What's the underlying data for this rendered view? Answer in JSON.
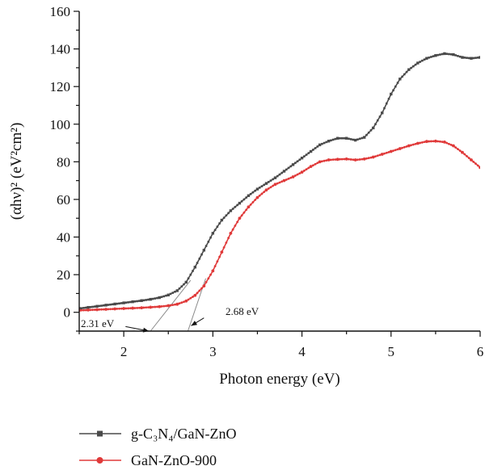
{
  "chart_data": {
    "type": "line",
    "title": "",
    "xlabel": "Photon energy (eV)",
    "ylabel": "(αhν)² (eV²cm²)",
    "xlim": [
      1.5,
      6
    ],
    "ylim": [
      -10,
      160
    ],
    "x_ticks": [
      2,
      3,
      4,
      5,
      6
    ],
    "y_ticks": [
      0,
      20,
      40,
      60,
      80,
      100,
      120,
      140,
      160
    ],
    "grid": false,
    "legend_position": "bottom",
    "series": [
      {
        "name": "g-C₃N₄/GaN-ZnO",
        "color": "#4a4a4a",
        "marker": "square",
        "points": [
          [
            1.5,
            2
          ],
          [
            1.6,
            2.6
          ],
          [
            1.7,
            3.2
          ],
          [
            1.8,
            3.8
          ],
          [
            1.9,
            4.4
          ],
          [
            2.0,
            5
          ],
          [
            2.1,
            5.6
          ],
          [
            2.2,
            6.2
          ],
          [
            2.3,
            6.9
          ],
          [
            2.4,
            7.8
          ],
          [
            2.5,
            9.2
          ],
          [
            2.6,
            11.5
          ],
          [
            2.7,
            16
          ],
          [
            2.8,
            24
          ],
          [
            2.9,
            33
          ],
          [
            3.0,
            42
          ],
          [
            3.1,
            49
          ],
          [
            3.2,
            54
          ],
          [
            3.3,
            58
          ],
          [
            3.4,
            62
          ],
          [
            3.5,
            65.5
          ],
          [
            3.6,
            68.5
          ],
          [
            3.7,
            71.5
          ],
          [
            3.8,
            75
          ],
          [
            3.9,
            78.5
          ],
          [
            4.0,
            82
          ],
          [
            4.1,
            85.5
          ],
          [
            4.2,
            89
          ],
          [
            4.3,
            91
          ],
          [
            4.4,
            92.5
          ],
          [
            4.5,
            92.5
          ],
          [
            4.6,
            91.5
          ],
          [
            4.7,
            93
          ],
          [
            4.8,
            98
          ],
          [
            4.9,
            106
          ],
          [
            5.0,
            116
          ],
          [
            5.1,
            124
          ],
          [
            5.2,
            129
          ],
          [
            5.3,
            132.5
          ],
          [
            5.4,
            135
          ],
          [
            5.5,
            136.5
          ],
          [
            5.6,
            137.5
          ],
          [
            5.7,
            137
          ],
          [
            5.8,
            135.5
          ],
          [
            5.9,
            135
          ],
          [
            6.0,
            135.5
          ]
        ]
      },
      {
        "name": "GaN-ZnO-900",
        "color": "#e03a3a",
        "marker": "circle",
        "points": [
          [
            1.5,
            1
          ],
          [
            1.6,
            1.2
          ],
          [
            1.7,
            1.4
          ],
          [
            1.8,
            1.6
          ],
          [
            1.9,
            1.8
          ],
          [
            2.0,
            2
          ],
          [
            2.1,
            2.2
          ],
          [
            2.2,
            2.4
          ],
          [
            2.3,
            2.7
          ],
          [
            2.4,
            3
          ],
          [
            2.5,
            3.5
          ],
          [
            2.6,
            4.3
          ],
          [
            2.7,
            6
          ],
          [
            2.8,
            9
          ],
          [
            2.9,
            14
          ],
          [
            3.0,
            22
          ],
          [
            3.1,
            32
          ],
          [
            3.2,
            42
          ],
          [
            3.3,
            50
          ],
          [
            3.4,
            56
          ],
          [
            3.5,
            61
          ],
          [
            3.6,
            65
          ],
          [
            3.7,
            68
          ],
          [
            3.8,
            70
          ],
          [
            3.9,
            72
          ],
          [
            4.0,
            74.5
          ],
          [
            4.1,
            77.5
          ],
          [
            4.2,
            80
          ],
          [
            4.3,
            81
          ],
          [
            4.4,
            81.3
          ],
          [
            4.5,
            81.5
          ],
          [
            4.6,
            81
          ],
          [
            4.7,
            81.5
          ],
          [
            4.8,
            82.5
          ],
          [
            4.9,
            84
          ],
          [
            5.0,
            85.5
          ],
          [
            5.1,
            87
          ],
          [
            5.2,
            88.5
          ],
          [
            5.3,
            89.8
          ],
          [
            5.4,
            90.8
          ],
          [
            5.5,
            91
          ],
          [
            5.6,
            90.5
          ],
          [
            5.7,
            88.5
          ],
          [
            5.8,
            85
          ],
          [
            5.9,
            81
          ],
          [
            6.0,
            77
          ]
        ]
      }
    ],
    "tangent_lines": [
      {
        "from": [
          2.3,
          -10
        ],
        "to": [
          2.75,
          17
        ]
      },
      {
        "from": [
          2.72,
          -10
        ],
        "to": [
          2.92,
          18
        ]
      }
    ],
    "annotations": [
      {
        "text": "2.31 eV",
        "at": [
          2.3,
          -10
        ],
        "arrow_from": [
          2.02,
          -7.6
        ]
      },
      {
        "text": "2.68 eV",
        "at": [
          2.72,
          -8
        ],
        "arrow_from": [
          2.9,
          -3
        ]
      }
    ]
  }
}
